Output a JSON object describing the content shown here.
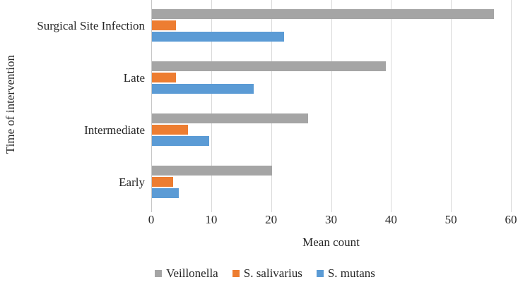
{
  "chart_data": {
    "type": "bar",
    "orientation": "horizontal",
    "title": "",
    "xlabel": "Mean count",
    "ylabel": "Time of intervention",
    "xlim": [
      0,
      60
    ],
    "xticks": [
      0,
      10,
      20,
      30,
      40,
      50,
      60
    ],
    "grid": true,
    "legend_position": "bottom",
    "categories": [
      "Surgical Site Infection",
      "Late",
      "Intermediate",
      "Early"
    ],
    "series": [
      {
        "name": "Veillonella",
        "color": "#A5A5A5",
        "values": [
          57,
          39,
          26,
          20
        ]
      },
      {
        "name": "S. salivarius",
        "color": "#ED7D31",
        "values": [
          4,
          4,
          6,
          3.5
        ]
      },
      {
        "name": "S. mutans",
        "color": "#5B9BD5",
        "values": [
          22,
          17,
          9.5,
          4.5
        ]
      }
    ],
    "colors": {
      "gridline": "#d9d9d9",
      "axis": "#c6c6c6",
      "text": "#262626"
    }
  }
}
